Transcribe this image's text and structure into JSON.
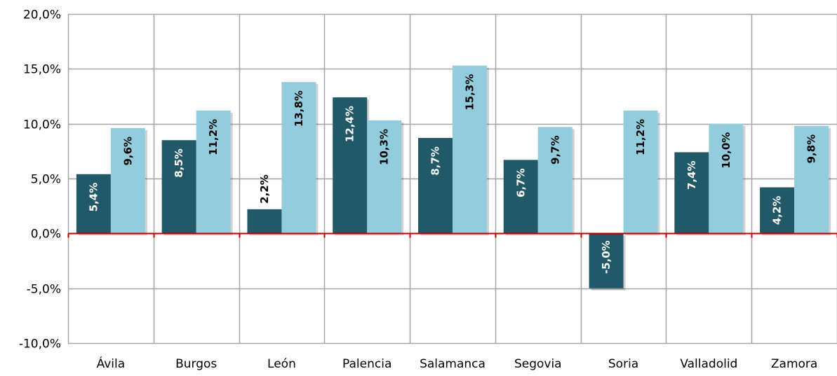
{
  "chart_data": {
    "type": "bar",
    "title": "",
    "xlabel": "",
    "ylabel": "",
    "categories": [
      "Ávila",
      "Burgos",
      "León",
      "Palencia",
      "Salamanca",
      "Segovia",
      "Soria",
      "Valladolid",
      "Zamora"
    ],
    "series": [
      {
        "values": [
          5.4,
          8.5,
          2.2,
          12.4,
          8.7,
          6.7,
          -5.0,
          7.4,
          4.2
        ],
        "color": "#215968"
      },
      {
        "values": [
          9.6,
          11.2,
          13.8,
          10.3,
          15.3,
          9.7,
          11.2,
          10.0,
          9.8
        ],
        "color": "#93CDDD"
      }
    ],
    "data_labels": [
      [
        "5,4%",
        "8,5%",
        "2,2%",
        "12,4%",
        "8,7%",
        "6,7%",
        "-5,0%",
        "7,4%",
        "4,2%"
      ],
      [
        "9,6%",
        "11,2%",
        "13,8%",
        "10,3%",
        "15,3%",
        "9,7%",
        "11,2%",
        "10,0%",
        "9,8%"
      ]
    ],
    "ylim": [
      -10,
      20
    ],
    "yticks": [
      -10,
      -5,
      0,
      5,
      10,
      15,
      20
    ],
    "ytick_labels": [
      "-10,0%",
      "-5,0%",
      "0,0%",
      "5,0%",
      "10,0%",
      "15,0%",
      "20,0%"
    ],
    "grid": true,
    "zero_line_color": "#C00000",
    "gridline_color": "#A6A6A6",
    "legend": "none"
  }
}
